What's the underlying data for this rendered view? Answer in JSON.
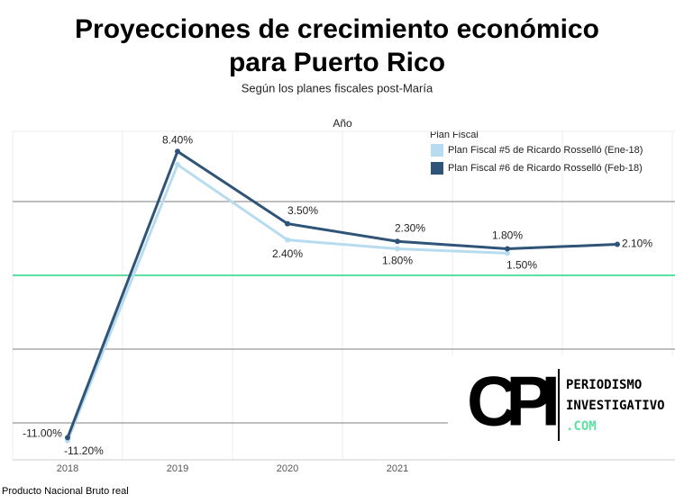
{
  "chart_data": {
    "type": "line",
    "title": "Proyecciones de crecimiento económico para Puerto Rico",
    "subtitle": "Según los planes fiscales post-María",
    "x_label": "Año",
    "legend_title": "Plan Fiscal",
    "footer": "Producto Nacional Bruto real",
    "categories": [
      "2018",
      "2019",
      "2020",
      "2021",
      null,
      null
    ],
    "series": [
      {
        "name": "Plan Fiscal #5 de Ricardo Rosselló (Ene-18)",
        "color": "#b8dcef",
        "values": [
          -11.2,
          7.5,
          2.4,
          1.8,
          1.5,
          null
        ],
        "value_labels": [
          "-11.20%",
          null,
          "2.40%",
          "1.80%",
          "1.50%",
          null
        ]
      },
      {
        "name": "Plan Fiscal #6 de Ricardo Rosselló (Feb-18)",
        "color": "#2f5478",
        "values": [
          -11.0,
          8.4,
          3.5,
          2.3,
          1.8,
          2.1
        ],
        "value_labels": [
          "-11.00%",
          "8.40%",
          "3.50%",
          "2.30%",
          "1.80%",
          "2.10%"
        ]
      }
    ],
    "ylim": [
      -12.5,
      10
    ],
    "yticks": [
      -10,
      -5,
      0,
      5
    ],
    "zero_line_color": "#5ee0a0",
    "grid": true,
    "legend_position": "top-right"
  },
  "logo": {
    "mark": "CPI",
    "lines": [
      "PERIODISMO",
      "INVESTIGATIVO",
      ".COM"
    ]
  }
}
